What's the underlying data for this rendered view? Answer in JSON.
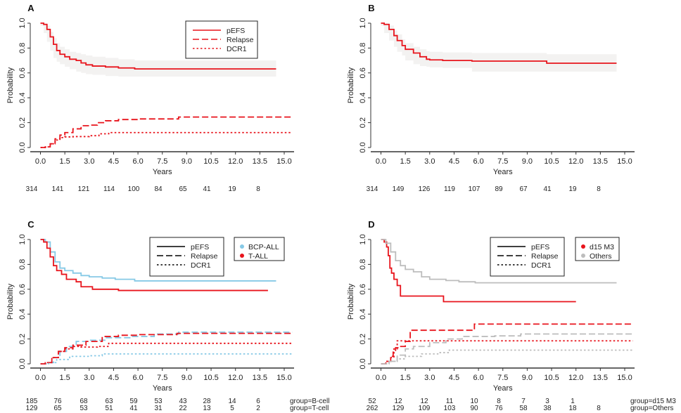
{
  "colors": {
    "red": "#e8141c",
    "blue": "#86c9e6",
    "gray": "#bdbdbd",
    "band": "#f3f2f1",
    "black": "#000000"
  },
  "chart_data": [
    {
      "panel": "A",
      "type": "line",
      "title": "",
      "xlabel": "Years",
      "ylabel": "Probability",
      "xlim": [
        0,
        15
      ],
      "ylim": [
        0,
        1
      ],
      "xticks": [
        "0.0",
        "1.5",
        "3.0",
        "4.5",
        "6.0",
        "7.5",
        "9.0",
        "10.5",
        "12.0",
        "13.5",
        "15.0"
      ],
      "yticks": [
        "0.0",
        "0.2",
        "0.4",
        "0.6",
        "0.8",
        "1.0"
      ],
      "legend": {
        "position": "top-right",
        "entries": [
          {
            "label": "pEFS",
            "style": "solid"
          },
          {
            "label": "Relapse",
            "style": "dashed"
          },
          {
            "label": "DCR1",
            "style": "dotted"
          }
        ]
      },
      "group_legend": [],
      "series": [
        {
          "name": "pEFS",
          "group": "All",
          "color": "red",
          "style": "solid",
          "band": true,
          "x": [
            0,
            0.2,
            0.4,
            0.6,
            0.8,
            1.0,
            1.2,
            1.5,
            1.8,
            2.2,
            2.5,
            2.8,
            3.2,
            4.0,
            4.8,
            5.8,
            14.5
          ],
          "y": [
            1.0,
            0.99,
            0.95,
            0.89,
            0.83,
            0.78,
            0.75,
            0.73,
            0.71,
            0.7,
            0.68,
            0.665,
            0.655,
            0.648,
            0.64,
            0.632,
            0.632
          ],
          "lower": [
            1.0,
            0.98,
            0.92,
            0.85,
            0.78,
            0.72,
            0.69,
            0.67,
            0.65,
            0.63,
            0.61,
            0.6,
            0.59,
            0.585,
            0.575,
            0.57,
            0.57
          ],
          "upper": [
            1.0,
            1.0,
            0.98,
            0.93,
            0.88,
            0.84,
            0.81,
            0.79,
            0.77,
            0.76,
            0.75,
            0.74,
            0.73,
            0.72,
            0.71,
            0.7,
            0.7
          ]
        },
        {
          "name": "Relapse",
          "group": "All",
          "color": "red",
          "style": "dashed",
          "x": [
            0,
            0.3,
            0.6,
            0.9,
            1.2,
            1.5,
            2.0,
            2.5,
            3.0,
            3.5,
            4.0,
            4.8,
            6.0,
            8.5,
            15.5
          ],
          "y": [
            0,
            0.005,
            0.03,
            0.07,
            0.1,
            0.12,
            0.15,
            0.175,
            0.18,
            0.2,
            0.215,
            0.225,
            0.23,
            0.245,
            0.245
          ]
        },
        {
          "name": "DCR1",
          "group": "All",
          "color": "red",
          "style": "dotted",
          "x": [
            0,
            0.3,
            0.6,
            0.9,
            1.2,
            1.5,
            2.0,
            3.0,
            3.6,
            4.2,
            15.5
          ],
          "y": [
            0,
            0.005,
            0.03,
            0.06,
            0.08,
            0.085,
            0.088,
            0.095,
            0.11,
            0.12,
            0.12
          ]
        }
      ],
      "risk_table": {
        "rows": [
          {
            "label": "",
            "values": [
              "314",
              "141",
              "121",
              "114",
              "100",
              "84",
              "65",
              "41",
              "19",
              "8"
            ]
          }
        ]
      }
    },
    {
      "panel": "B",
      "type": "line",
      "title": "",
      "xlabel": "Years",
      "ylabel": "Probability",
      "xlim": [
        0,
        15
      ],
      "ylim": [
        0,
        1
      ],
      "xticks": [
        "0.0",
        "1.5",
        "3.0",
        "4.5",
        "6.0",
        "7.5",
        "9.0",
        "10.5",
        "12.0",
        "13.5",
        "15.0"
      ],
      "yticks": [
        "0.0",
        "0.2",
        "0.4",
        "0.6",
        "0.8",
        "1.0"
      ],
      "legend": null,
      "group_legend": [],
      "series": [
        {
          "name": "pEFS",
          "group": "All",
          "color": "red",
          "style": "solid",
          "band": true,
          "x": [
            0,
            0.2,
            0.5,
            0.8,
            1.0,
            1.3,
            1.5,
            2.0,
            2.4,
            2.8,
            3.0,
            3.8,
            5.6,
            10.2,
            14.5
          ],
          "y": [
            1.0,
            0.99,
            0.95,
            0.9,
            0.86,
            0.82,
            0.79,
            0.76,
            0.73,
            0.71,
            0.705,
            0.7,
            0.695,
            0.678,
            0.678
          ],
          "lower": [
            1.0,
            0.98,
            0.92,
            0.86,
            0.81,
            0.77,
            0.74,
            0.7,
            0.67,
            0.655,
            0.65,
            0.645,
            0.64,
            0.61,
            0.61
          ],
          "upper": [
            1.0,
            1.0,
            0.98,
            0.94,
            0.91,
            0.87,
            0.84,
            0.81,
            0.79,
            0.775,
            0.77,
            0.765,
            0.76,
            0.75,
            0.75
          ]
        }
      ],
      "risk_table": {
        "rows": [
          {
            "label": "",
            "values": [
              "314",
              "149",
              "126",
              "119",
              "107",
              "89",
              "67",
              "41",
              "19",
              "8"
            ]
          }
        ]
      }
    },
    {
      "panel": "C",
      "type": "line",
      "title": "",
      "xlabel": "Years",
      "ylabel": "Probability",
      "xlim": [
        0,
        15
      ],
      "ylim": [
        0,
        1
      ],
      "xticks": [
        "0.0",
        "1.5",
        "3.0",
        "4.5",
        "6.0",
        "7.5",
        "9.0",
        "10.5",
        "12.0",
        "13.5",
        "15.0"
      ],
      "yticks": [
        "0.0",
        "0.2",
        "0.4",
        "0.6",
        "0.8",
        "1.0"
      ],
      "legend": {
        "position": "top-right",
        "entries": [
          {
            "label": "pEFS",
            "style": "solid"
          },
          {
            "label": "Relapse",
            "style": "dashed"
          },
          {
            "label": "DCR1",
            "style": "dotted"
          }
        ]
      },
      "group_legend": [
        {
          "label": "BCP-ALL",
          "color": "blue"
        },
        {
          "label": "T-ALL",
          "color": "red"
        }
      ],
      "series": [
        {
          "name": "pEFS",
          "group": "BCP-ALL",
          "color": "blue",
          "style": "solid",
          "x": [
            0,
            0.3,
            0.6,
            0.9,
            1.2,
            1.5,
            2.0,
            2.5,
            3.0,
            3.8,
            4.6,
            5.8,
            14.5
          ],
          "y": [
            1.0,
            0.98,
            0.9,
            0.82,
            0.77,
            0.75,
            0.73,
            0.71,
            0.7,
            0.69,
            0.68,
            0.667,
            0.667
          ]
        },
        {
          "name": "pEFS",
          "group": "T-ALL",
          "color": "red",
          "style": "solid",
          "x": [
            0,
            0.2,
            0.4,
            0.6,
            0.8,
            1.0,
            1.3,
            1.6,
            2.2,
            2.5,
            3.2,
            4.8,
            14.0
          ],
          "y": [
            1.0,
            0.98,
            0.93,
            0.86,
            0.79,
            0.75,
            0.72,
            0.68,
            0.66,
            0.62,
            0.6,
            0.59,
            0.59
          ]
        },
        {
          "name": "Relapse",
          "group": "BCP-ALL",
          "color": "blue",
          "style": "dashed",
          "x": [
            0,
            0.4,
            0.8,
            1.2,
            1.6,
            2.2,
            3.0,
            4.0,
            5.5,
            7.0,
            8.5,
            15.5
          ],
          "y": [
            0,
            0.01,
            0.05,
            0.1,
            0.14,
            0.18,
            0.19,
            0.21,
            0.22,
            0.24,
            0.255,
            0.255
          ]
        },
        {
          "name": "Relapse",
          "group": "T-ALL",
          "color": "red",
          "style": "dashed",
          "x": [
            0,
            0.3,
            0.7,
            1.1,
            1.5,
            2.0,
            2.8,
            3.8,
            4.8,
            6.0,
            8.4,
            15.5
          ],
          "y": [
            0,
            0.01,
            0.05,
            0.1,
            0.13,
            0.15,
            0.18,
            0.22,
            0.23,
            0.235,
            0.245,
            0.245
          ]
        },
        {
          "name": "DCR1",
          "group": "BCP-ALL",
          "color": "blue",
          "style": "dotted",
          "x": [
            0,
            0.5,
            1.0,
            1.8,
            3.0,
            3.8,
            15.5
          ],
          "y": [
            0,
            0.01,
            0.035,
            0.06,
            0.065,
            0.08,
            0.08
          ]
        },
        {
          "name": "DCR1",
          "group": "T-ALL",
          "color": "red",
          "style": "dotted",
          "x": [
            0,
            0.3,
            0.7,
            1.1,
            1.5,
            2.0,
            2.5,
            3.5,
            4.2,
            15.5
          ],
          "y": [
            0,
            0.01,
            0.05,
            0.1,
            0.12,
            0.14,
            0.135,
            0.14,
            0.165,
            0.165
          ]
        }
      ],
      "risk_table": {
        "rows": [
          {
            "label": "group=B-cell",
            "values": [
              "185",
              "76",
              "68",
              "63",
              "59",
              "53",
              "43",
              "28",
              "14",
              "6"
            ]
          },
          {
            "label": "group=T-cell",
            "values": [
              "129",
              "65",
              "53",
              "51",
              "41",
              "31",
              "22",
              "13",
              "5",
              "2"
            ]
          }
        ]
      }
    },
    {
      "panel": "D",
      "type": "line",
      "title": "",
      "xlabel": "Years",
      "ylabel": "Probability",
      "xlim": [
        0,
        15
      ],
      "ylim": [
        0,
        1
      ],
      "xticks": [
        "0.0",
        "1.5",
        "3.0",
        "4.5",
        "6.0",
        "7.5",
        "9.0",
        "10.5",
        "12.0",
        "13.5",
        "15.0"
      ],
      "yticks": [
        "0.0",
        "0.2",
        "0.4",
        "0.6",
        "0.8",
        "1.0"
      ],
      "legend": {
        "position": "top-right",
        "entries": [
          {
            "label": "pEFS",
            "style": "solid"
          },
          {
            "label": "Relapse",
            "style": "dashed"
          },
          {
            "label": "DCR1",
            "style": "dotted"
          }
        ]
      },
      "group_legend": [
        {
          "label": "d15 M3",
          "color": "red"
        },
        {
          "label": "Others",
          "color": "gray"
        }
      ],
      "series": [
        {
          "name": "pEFS",
          "group": "d15 M3",
          "color": "red",
          "style": "solid",
          "x": [
            0,
            0.2,
            0.35,
            0.45,
            0.55,
            0.65,
            0.8,
            1.0,
            1.2,
            3.85,
            12.0
          ],
          "y": [
            1.0,
            0.98,
            0.94,
            0.87,
            0.77,
            0.73,
            0.68,
            0.63,
            0.545,
            0.5,
            0.5
          ]
        },
        {
          "name": "pEFS",
          "group": "Others",
          "color": "gray",
          "style": "solid",
          "x": [
            0,
            0.3,
            0.6,
            0.9,
            1.2,
            1.5,
            2.0,
            2.5,
            3.0,
            4.0,
            4.8,
            5.8,
            14.5
          ],
          "y": [
            1.0,
            0.97,
            0.9,
            0.83,
            0.79,
            0.76,
            0.74,
            0.7,
            0.68,
            0.67,
            0.66,
            0.652,
            0.652
          ]
        },
        {
          "name": "Relapse",
          "group": "d15 M3",
          "color": "red",
          "style": "dashed",
          "x": [
            0,
            0.3,
            0.6,
            0.75,
            0.9,
            1.1,
            1.5,
            1.8,
            5.75,
            15.5
          ],
          "y": [
            0,
            0.02,
            0.06,
            0.1,
            0.13,
            0.14,
            0.18,
            0.27,
            0.32,
            0.32
          ]
        },
        {
          "name": "Relapse",
          "group": "Others",
          "color": "gray",
          "style": "dashed",
          "x": [
            0,
            0.5,
            1.0,
            1.5,
            2.0,
            3.0,
            4.0,
            5.0,
            7.0,
            8.6,
            15.5
          ],
          "y": [
            0,
            0.02,
            0.07,
            0.12,
            0.14,
            0.17,
            0.2,
            0.22,
            0.225,
            0.24,
            0.24
          ]
        },
        {
          "name": "DCR1",
          "group": "d15 M3",
          "color": "red",
          "style": "dotted",
          "x": [
            0,
            0.3,
            0.6,
            0.8,
            1.0,
            15.5
          ],
          "y": [
            0,
            0.02,
            0.05,
            0.12,
            0.185,
            0.185
          ]
        },
        {
          "name": "DCR1",
          "group": "Others",
          "color": "gray",
          "style": "dotted",
          "x": [
            0,
            0.5,
            1.0,
            1.5,
            2.5,
            3.5,
            4.2,
            15.5
          ],
          "y": [
            0,
            0.02,
            0.04,
            0.06,
            0.08,
            0.09,
            0.11,
            0.11
          ]
        }
      ],
      "risk_table": {
        "rows": [
          {
            "label": "group=d15 M3",
            "values": [
              "52",
              "12",
              "12",
              "11",
              "10",
              "8",
              "7",
              "3",
              "1",
              ""
            ]
          },
          {
            "label": "group=Others",
            "values": [
              "262",
              "129",
              "109",
              "103",
              "90",
              "76",
              "58",
              "38",
              "18",
              "8"
            ]
          }
        ]
      }
    }
  ]
}
